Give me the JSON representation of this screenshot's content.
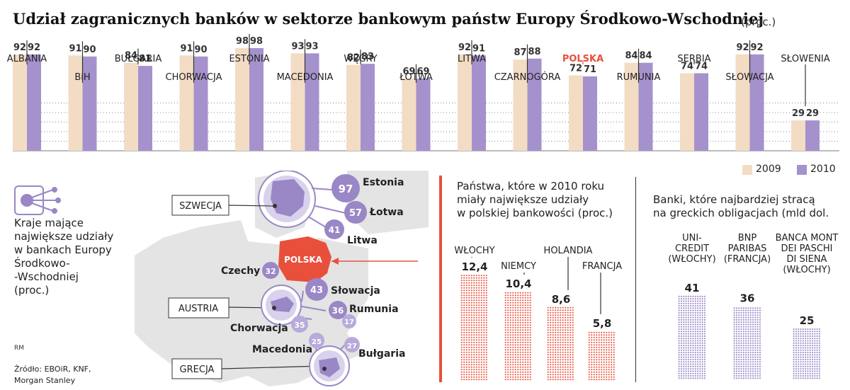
{
  "title": "Udział zagranicznych banków w sektorze bankowym państw Europy Środkowo-Wschodniej",
  "unit": "(proc.)",
  "colors": {
    "c2009": "#f2dcc4",
    "c2010": "#a592cc",
    "accent": "#e8503c",
    "purple": "#9a87c6",
    "dark": "#333333"
  },
  "chart_data": [
    {
      "type": "bar",
      "categories": [
        "ALBANIA",
        "BiH",
        "BUŁGARIA",
        "CHORWACJA",
        "ESTONIA",
        "MACEDONIA",
        "WĘGRY",
        "ŁOTWA",
        "LITWA",
        "CZARNOGÓRA",
        "POLSKA",
        "RUMUNIA",
        "SERBIA",
        "SŁOWACJA",
        "SŁOWENIA"
      ],
      "series": [
        {
          "name": "2009",
          "values": [
            92,
            91,
            84,
            91,
            98,
            93,
            82,
            69,
            92,
            87,
            72,
            84,
            74,
            92,
            29
          ]
        },
        {
          "name": "2010",
          "values": [
            92,
            90,
            81,
            90,
            98,
            93,
            83,
            69,
            91,
            88,
            71,
            84,
            74,
            92,
            29
          ]
        }
      ],
      "ylim": [
        0,
        100
      ],
      "legend": {
        "position": "bottom-right",
        "labels": [
          "2009",
          "2010"
        ]
      },
      "highlight": "POLSKA"
    },
    {
      "type": "bar",
      "title": [
        "Państwa, które w 2010 roku",
        "miały największe udziały",
        "w polskiej bankowości (proc.)"
      ],
      "categories": [
        "WŁOCHY",
        "NIEMCY",
        "HOLANDIA",
        "FRANCJA"
      ],
      "values": [
        12.4,
        10.4,
        8.6,
        5.8
      ],
      "value_labels": [
        "12,4",
        "10,4",
        "8,6",
        "5,8"
      ]
    },
    {
      "type": "bar",
      "title": [
        "Banki, które najbardziej stracą",
        "na greckich obligacjach (mld dol."
      ],
      "categories": [
        [
          "UNI-",
          "CREDIT",
          "(WŁOCHY)"
        ],
        [
          "BNP",
          "PARIBAS",
          "(FRANCJA)"
        ],
        [
          "BANCA MONT",
          "DEI PASCHI",
          "DI SIENA",
          "(WŁOCHY)"
        ]
      ],
      "values": [
        41,
        36,
        25
      ]
    }
  ],
  "map": {
    "countries": [
      "SZWECJA",
      "AUSTRIA",
      "GRECJA"
    ],
    "center": "POLSKA",
    "shares": [
      {
        "label": "Estonia",
        "value": "97"
      },
      {
        "label": "Łotwa",
        "value": "57"
      },
      {
        "label": "Litwa",
        "value": "41"
      },
      {
        "label": "Czechy",
        "value": "32"
      },
      {
        "label": "Słowacja",
        "value": "43"
      },
      {
        "label": "Rumunia",
        "value": "36"
      },
      {
        "label": "Chorwacja",
        "value": "35"
      },
      {
        "label": "Macedonia",
        "value": "25"
      },
      {
        "label": "Bułgaria",
        "value": "27"
      },
      {
        "label": "",
        "value": "17"
      }
    ]
  },
  "side_note": [
    "Kraje mające",
    "największe udziały",
    "w bankach Europy",
    "Środkowo-",
    "-Wschodniej",
    "(proc.)"
  ],
  "rm": "RM",
  "source": [
    "Źródło: EBOiR, KNF,",
    "Morgan Stanley"
  ]
}
